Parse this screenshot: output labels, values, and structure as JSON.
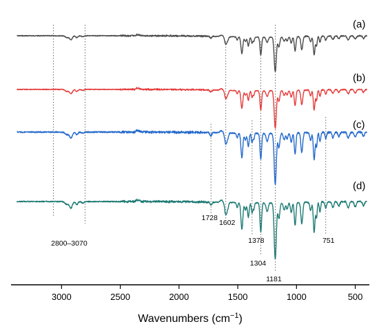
{
  "chart_data": {
    "type": "line",
    "xlabel": "Wavenumbers (cm⁻¹)",
    "xlabel_parts": [
      "Wavenumbers (cm",
      "−1",
      ")"
    ],
    "ylabel": "",
    "xlim": [
      3430,
      380
    ],
    "x_reversed": true,
    "x_ticks": [
      3000,
      2500,
      2000,
      1500,
      1000,
      500
    ],
    "x_tick_labels": [
      "3000",
      "2500",
      "2000",
      "1500",
      "1000",
      "500"
    ],
    "grid": false,
    "series": [
      {
        "name": "(a)",
        "color": "#4a4a4a",
        "scale": 0.65,
        "noise": 1.0
      },
      {
        "name": "(b)",
        "color": "#e53b3b",
        "scale": 0.7,
        "noise": 1.0
      },
      {
        "name": "(c)",
        "color": "#2469cc",
        "scale": 0.95,
        "noise": 1.6
      },
      {
        "name": "(d)",
        "color": "#1d7a74",
        "scale": 1.05,
        "noise": 1.4
      }
    ],
    "peaks": [
      {
        "x": 2955,
        "depth": 4,
        "w": 14
      },
      {
        "x": 2920,
        "depth": 9,
        "w": 12
      },
      {
        "x": 2870,
        "depth": 4,
        "w": 10
      },
      {
        "x": 2820,
        "depth": 2,
        "w": 10
      },
      {
        "x": 2360,
        "depth": -2.5,
        "w": 7
      },
      {
        "x": 2340,
        "depth": -2,
        "w": 7
      },
      {
        "x": 1728,
        "depth": 4,
        "w": 8
      },
      {
        "x": 1640,
        "depth": -3,
        "w": 12
      },
      {
        "x": 1602,
        "depth": 17,
        "w": 9
      },
      {
        "x": 1585,
        "depth": 7,
        "w": 7
      },
      {
        "x": 1505,
        "depth": 7,
        "w": 6
      },
      {
        "x": 1465,
        "depth": 37,
        "w": 8
      },
      {
        "x": 1435,
        "depth": 10,
        "w": 7
      },
      {
        "x": 1410,
        "depth": 20,
        "w": 7
      },
      {
        "x": 1378,
        "depth": 14,
        "w": 6
      },
      {
        "x": 1363,
        "depth": 9,
        "w": 5
      },
      {
        "x": 1304,
        "depth": 40,
        "w": 7
      },
      {
        "x": 1250,
        "depth": 12,
        "w": 9
      },
      {
        "x": 1181,
        "depth": 78,
        "w": 9
      },
      {
        "x": 1150,
        "depth": 22,
        "w": 8
      },
      {
        "x": 1105,
        "depth": 10,
        "w": 8
      },
      {
        "x": 1080,
        "depth": 9,
        "w": 7
      },
      {
        "x": 1045,
        "depth": 14,
        "w": 7
      },
      {
        "x": 1012,
        "depth": 32,
        "w": 7
      },
      {
        "x": 955,
        "depth": 30,
        "w": 8
      },
      {
        "x": 880,
        "depth": 12,
        "w": 7
      },
      {
        "x": 850,
        "depth": 42,
        "w": 7
      },
      {
        "x": 830,
        "depth": 22,
        "w": 6
      },
      {
        "x": 800,
        "depth": 14,
        "w": 6
      },
      {
        "x": 751,
        "depth": 9,
        "w": 7
      },
      {
        "x": 690,
        "depth": 8,
        "w": 8
      },
      {
        "x": 640,
        "depth": 6,
        "w": 8
      },
      {
        "x": 560,
        "depth": 9,
        "w": 9
      },
      {
        "x": 500,
        "depth": 7,
        "w": 9
      },
      {
        "x": 430,
        "depth": 6,
        "w": 8
      }
    ],
    "marker_lines": [
      3070,
      2800,
      1728,
      1602,
      1378,
      1304,
      1181,
      751
    ],
    "annotations": [
      {
        "text": "2800–3070",
        "x": 2935
      },
      {
        "text": "1728",
        "x": 1728
      },
      {
        "text": "1602",
        "x": 1602
      },
      {
        "text": "1378",
        "x": 1378
      },
      {
        "text": "1304",
        "x": 1304
      },
      {
        "text": "1181",
        "x": 1181
      },
      {
        "text": "751",
        "x": 751
      }
    ]
  }
}
